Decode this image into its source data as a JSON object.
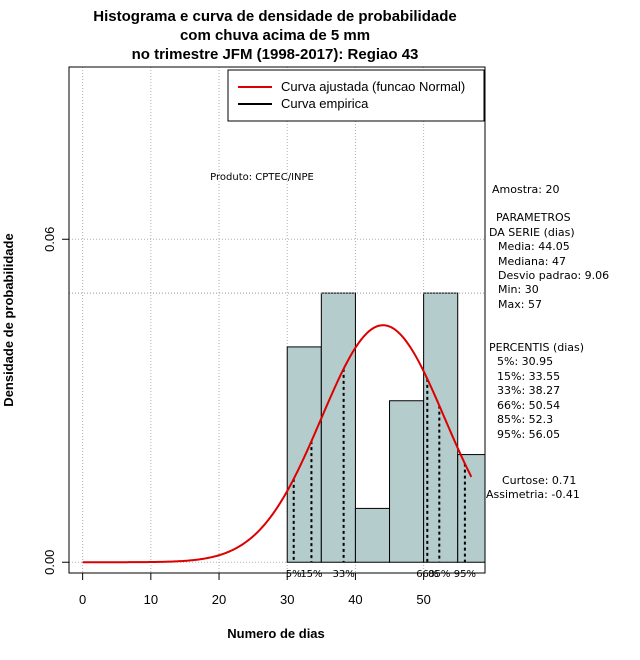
{
  "chart_data": {
    "type": "histogram",
    "title": [
      "Histograma e curva de densidade de probabilidade",
      "com chuva acima de 5 mm",
      "no trimestre JFM (1998-2017): Regiao 43"
    ],
    "xlabel": "Numero de dias",
    "ylabel": "Densidade de probabilidade",
    "xlim": [
      -2,
      59
    ],
    "ylim": [
      -0.002,
      0.092
    ],
    "x_ticks": [
      0,
      10,
      20,
      30,
      40,
      50
    ],
    "y_ticks": [
      0.0,
      0.06
    ],
    "y_tick_labels": [
      "0.00",
      "0.06"
    ],
    "bins": [
      {
        "x0": 30,
        "x1": 35,
        "density": 0.04
      },
      {
        "x0": 35,
        "x1": 40,
        "density": 0.05
      },
      {
        "x0": 40,
        "x1": 45,
        "density": 0.01
      },
      {
        "x0": 45,
        "x1": 50,
        "density": 0.03
      },
      {
        "x0": 50,
        "x1": 55,
        "density": 0.05
      },
      {
        "x0": 55,
        "x1": 60,
        "density": 0.02
      }
    ],
    "normal_fit": {
      "mean": 44.05,
      "sd": 9.06,
      "x_range": [
        0,
        57
      ],
      "color": "#dd0000"
    },
    "dotted_reference_y": 0.05,
    "percentile_lines": [
      {
        "label": "5%",
        "value": 30.95
      },
      {
        "label": "15%",
        "value": 33.55
      },
      {
        "label": "33%",
        "value": 38.27
      },
      {
        "label": "66%",
        "value": 50.54
      },
      {
        "label": "85%",
        "value": 52.3
      },
      {
        "label": "95%",
        "value": 56.05
      }
    ],
    "legend": {
      "position": "top-right",
      "entries": [
        {
          "label": "Curva ajustada (funcao Normal)",
          "color": "#dd0000"
        },
        {
          "label": "Curva empirica",
          "color": "#000000"
        }
      ]
    },
    "grid": true,
    "bar_fill": "#b5cccd"
  },
  "annotations": {
    "produto": "Produto: CPTEC/INPE",
    "amostra": "Amostra: 20",
    "parametros": [
      "PARAMETROS",
      "DA SERIE (dias)",
      "Media: 44.05",
      "Mediana: 47",
      "Desvio padrao: 9.06",
      "Min: 30",
      "Max: 57"
    ],
    "percentis": [
      "PERCENTIS (dias)",
      "5%: 30.95",
      "15%: 33.55",
      "33%: 38.27",
      "66%: 50.54",
      "85%: 52.3",
      "95%: 56.05"
    ],
    "curtose": "Curtose: 0.71",
    "assimetria": "Assimetria: -0.41"
  }
}
